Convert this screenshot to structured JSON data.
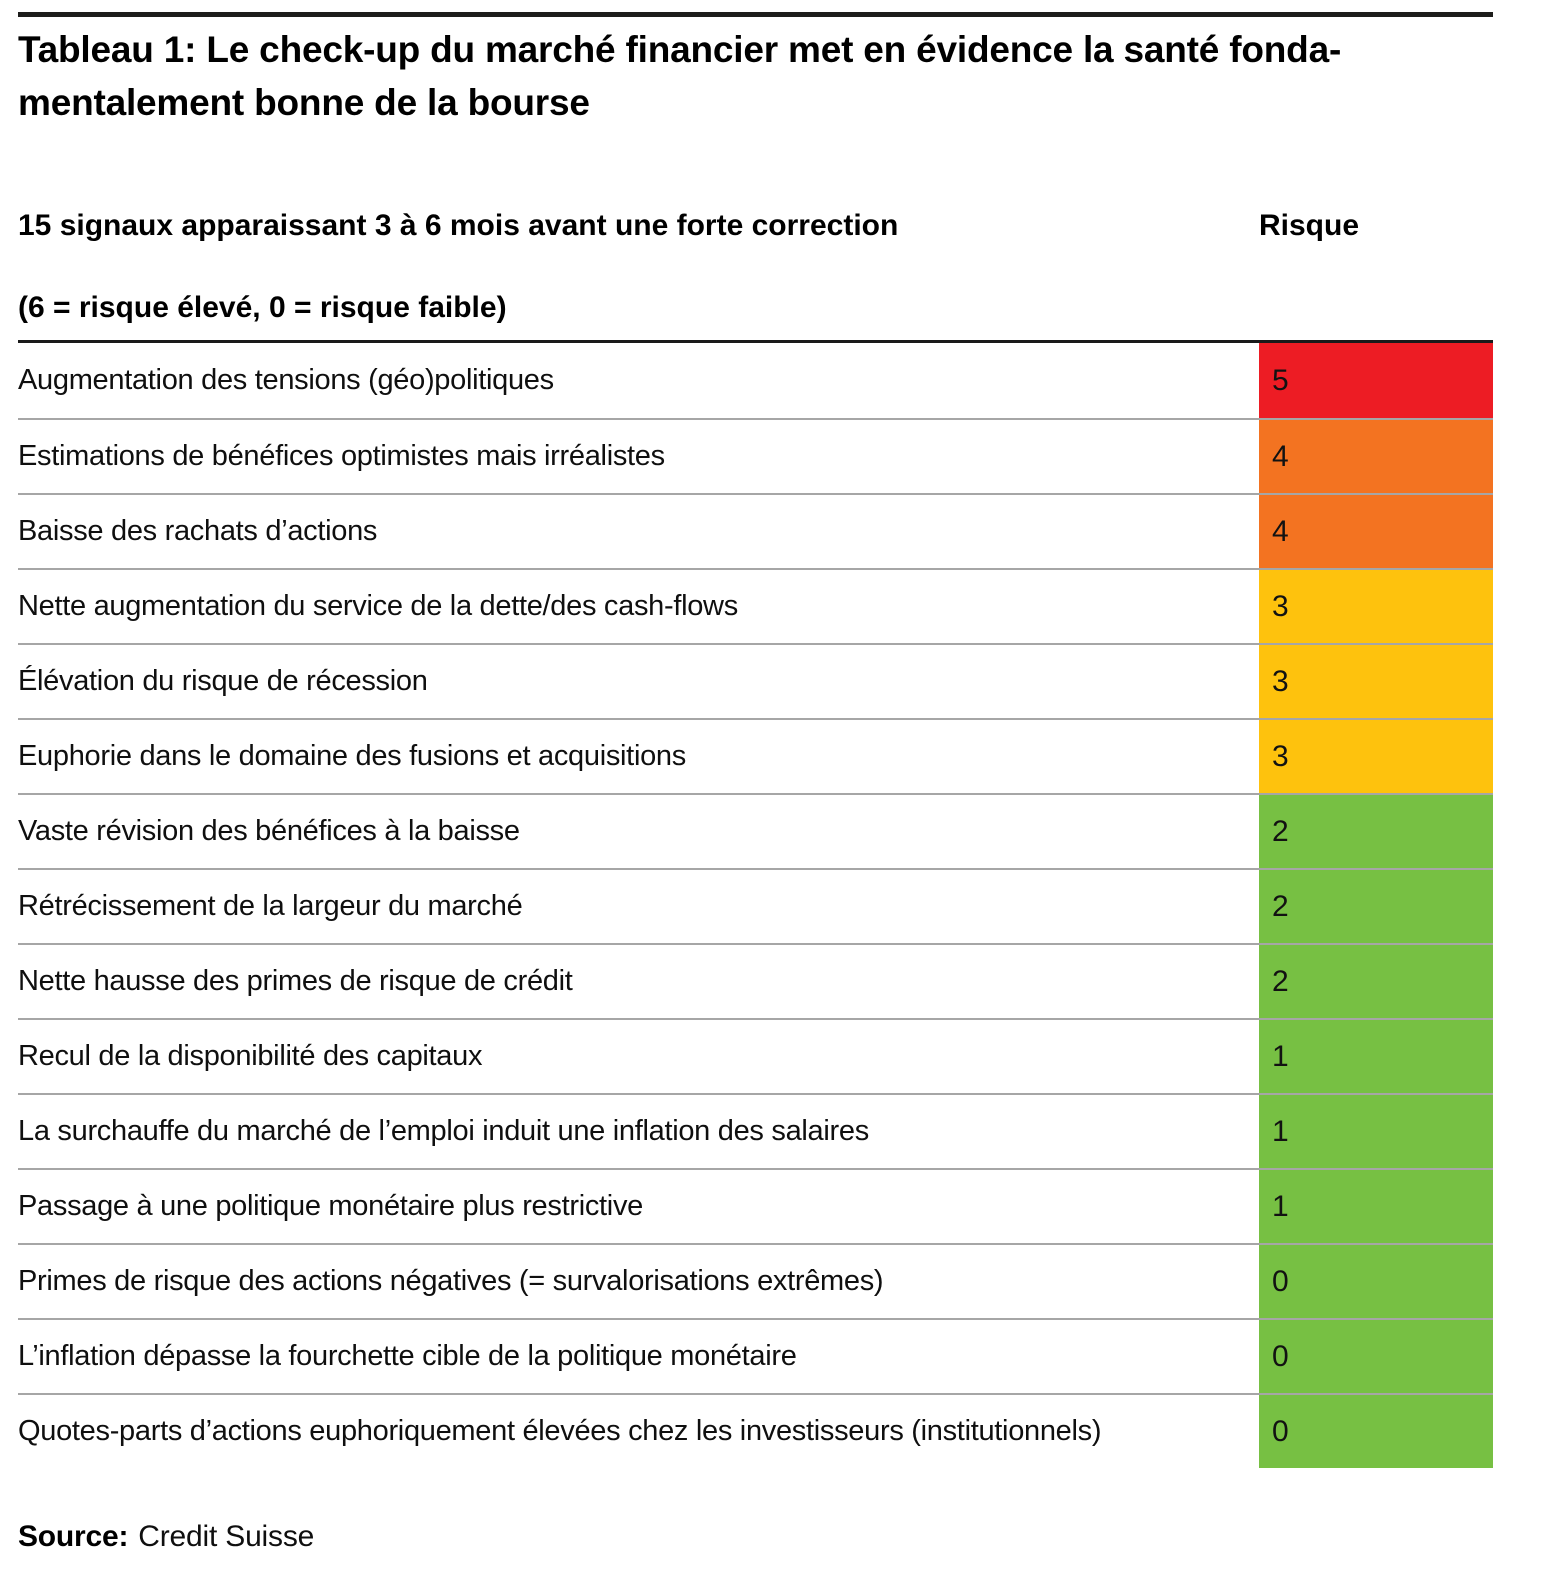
{
  "header": {
    "title_lines": [
      "Tableau 1: Le check-up du marché financier met en évidence la santé fonda-",
      "mentalement bonne de la bourse"
    ]
  },
  "table": {
    "col1_header": "15 signaux apparaissant 3 à 6 mois avant une forte correction",
    "col2_header": "Risque",
    "subheader": "(6 = risque élevé, 0 = risque faible)"
  },
  "source": {
    "label": "Source:",
    "value": "Credit Suisse"
  },
  "colors": {
    "risk_5_red": "#ED1C24",
    "risk_4_orange": "#F37321",
    "risk_3_yellow": "#FEC20D",
    "risk_low_green": "#77C043",
    "row_separator": "#A6A6A6",
    "rules": "#1A1A1A"
  },
  "chart_data": {
    "type": "table",
    "title": "Tableau 1: Le check-up du marché financier met en évidence la santé fondamentalement bonne de la bourse",
    "columns": [
      "15 signaux apparaissant 3 à 6 mois avant une forte correction",
      "Risque"
    ],
    "scale_note": "(6 = risque élevé, 0 = risque faible)",
    "value_range": [
      0,
      6
    ],
    "rows": [
      {
        "label": "Augmentation des tensions (géo)politiques",
        "value": 5,
        "color": "#ED1C24"
      },
      {
        "label": "Estimations de bénéfices optimistes mais irréalistes",
        "value": 4,
        "color": "#F37321"
      },
      {
        "label": "Baisse des rachats d’actions",
        "value": 4,
        "color": "#F37321"
      },
      {
        "label": "Nette augmentation du service de la dette/des cash-flows",
        "value": 3,
        "color": "#FEC20D"
      },
      {
        "label": "Élévation du risque de récession",
        "value": 3,
        "color": "#FEC20D"
      },
      {
        "label": "Euphorie dans le domaine des fusions et acquisitions",
        "value": 3,
        "color": "#FEC20D"
      },
      {
        "label": "Vaste révision des bénéfices à la baisse",
        "value": 2,
        "color": "#77C043"
      },
      {
        "label": "Rétrécissement de la largeur du marché",
        "value": 2,
        "color": "#77C043"
      },
      {
        "label": "Nette hausse des primes de risque de crédit",
        "value": 2,
        "color": "#77C043"
      },
      {
        "label": "Recul de la disponibilité des capitaux",
        "value": 1,
        "color": "#77C043"
      },
      {
        "label": "La surchauffe du marché de l’emploi induit une inflation des salaires",
        "value": 1,
        "color": "#77C043"
      },
      {
        "label": "Passage à une politique monétaire plus restrictive",
        "value": 1,
        "color": "#77C043"
      },
      {
        "label": "Primes de risque des actions négatives (= survalorisations extrêmes)",
        "value": 0,
        "color": "#77C043"
      },
      {
        "label": "L’inflation dépasse la fourchette cible de la politique monétaire",
        "value": 0,
        "color": "#77C043"
      },
      {
        "label": "Quotes-parts d’actions euphoriquement élevées chez les investisseurs (institutionnels)",
        "value": 0,
        "color": "#77C043"
      }
    ]
  }
}
